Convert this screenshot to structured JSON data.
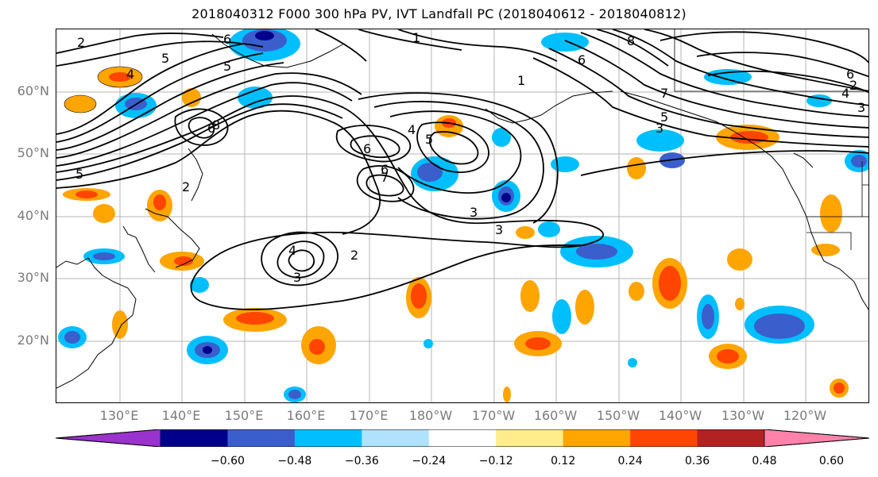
{
  "title": "2018040312 F000 300 hPa PV, IVT Landfall PC (2018040612 - 2018040812)",
  "lat_labels": [
    "60°N",
    "50°N",
    "40°N",
    "30°N",
    "20°N"
  ],
  "lon_labels": [
    "130°E",
    "140°E",
    "150°E",
    "160°E",
    "170°E",
    "180°W",
    "170°W",
    "160°W",
    "150°W",
    "140°W",
    "130°W",
    "120°W"
  ],
  "colorbar": {
    "ticks": [
      "−0.60",
      "−0.48",
      "−0.36",
      "−0.24",
      "−0.12",
      "0.12",
      "0.24",
      "0.36",
      "0.48",
      "0.60"
    ],
    "colors": [
      "#9a32cd",
      "#00008b",
      "#3a5fcd",
      "#00bfff",
      "#b0e2ff",
      "#ffffff",
      "#ffec8b",
      "#ffa500",
      "#ff4500",
      "#b22222",
      "#ff82ab"
    ]
  },
  "contour_labels": [
    "2",
    "6",
    "1",
    "8",
    "6",
    "5",
    "4",
    "5",
    "7",
    "1",
    "4",
    "5",
    "6",
    "6",
    "5",
    "3",
    "4",
    "2",
    "3",
    "7",
    "4",
    "3",
    "2",
    "6",
    "8",
    "3",
    "5",
    "6",
    "2",
    "3"
  ]
}
